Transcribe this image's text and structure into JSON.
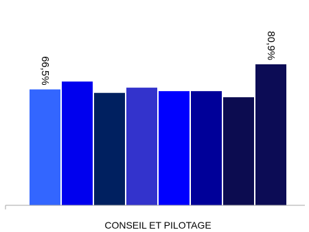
{
  "chart_data": {
    "type": "bar",
    "categories": [
      "CONSEIL ET PILOTAGE"
    ],
    "series": [
      {
        "values": [
          66.5
        ],
        "color": "#3366FF"
      },
      {
        "values": [
          71.0
        ],
        "color": "#0000EE"
      },
      {
        "values": [
          64.5
        ],
        "color": "#002060"
      },
      {
        "values": [
          67.5
        ],
        "color": "#3333CC"
      },
      {
        "values": [
          65.5
        ],
        "color": "#0000FF"
      },
      {
        "values": [
          65.5
        ],
        "color": "#000099"
      },
      {
        "values": [
          62.0
        ],
        "color": "#0C0C50"
      },
      {
        "values": [
          80.9
        ],
        "color": "#0C0C55"
      }
    ],
    "data_labels": [
      {
        "series_index": 0,
        "text": "66,5%"
      },
      {
        "series_index": 7,
        "text": "80,9%"
      }
    ],
    "ylim": [
      0,
      100
    ],
    "grid": false,
    "legend": "none"
  }
}
